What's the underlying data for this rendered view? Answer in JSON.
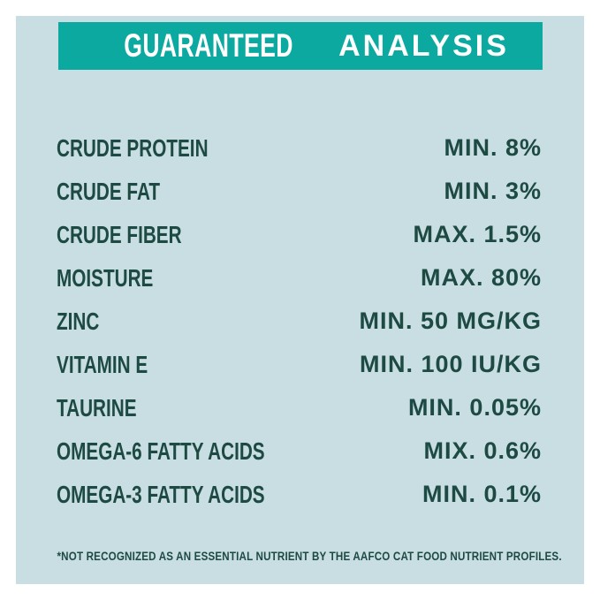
{
  "header": {
    "title_regular": "GUARANTEED",
    "title_bold": "ANALYSIS"
  },
  "table": {
    "rows": [
      {
        "label": "CRUDE PROTEIN",
        "value": "MIN. 8%"
      },
      {
        "label": "CRUDE FAT",
        "value": "MIN. 3%"
      },
      {
        "label": "CRUDE FIBER",
        "value": "MAX. 1.5%"
      },
      {
        "label": "MOISTURE",
        "value": "MAX. 80%"
      },
      {
        "label": "ZINC",
        "value": "MIN. 50 MG/KG"
      },
      {
        "label": "VITAMIN E",
        "value": "MIN. 100 IU/KG"
      },
      {
        "label": "TAURINE",
        "value": "MIN. 0.05%"
      },
      {
        "label": "OMEGA-6 FATTY ACIDS",
        "value": "MIX. 0.6%"
      },
      {
        "label": "OMEGA-3 FATTY ACIDS",
        "value": "MIN. 0.1%"
      }
    ]
  },
  "footnote": "*NOT RECOGNIZED AS AN ESSENTIAL NUTRIENT BY THE AAFCO CAT FOOD NUTRIENT PROFILES.",
  "colors": {
    "panel_background": "#c9dee2",
    "header_background": "#0ca9a1",
    "header_text": "#ffffff",
    "body_text": "#1d4a43",
    "outer_frame": "#ffffff"
  }
}
